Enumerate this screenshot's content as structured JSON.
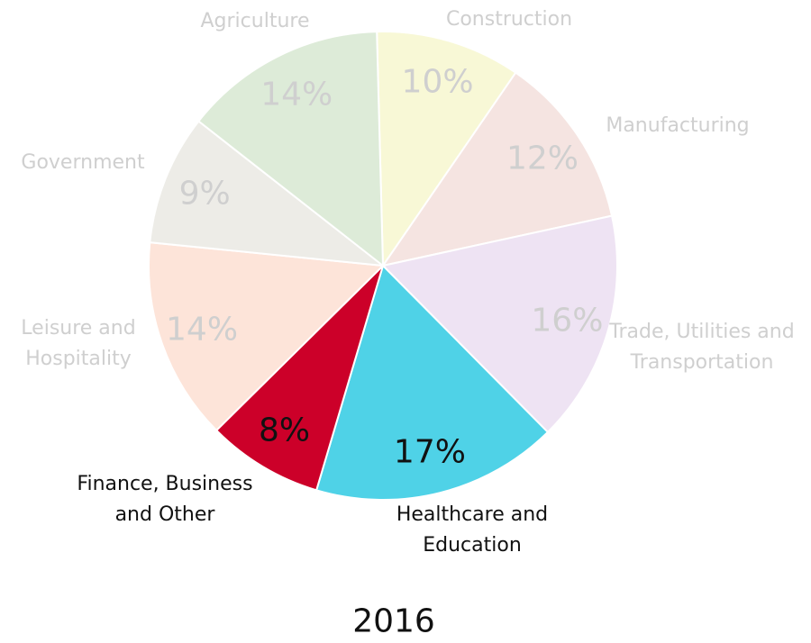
{
  "chart_data": {
    "type": "pie",
    "title": "2016",
    "categories": [
      "Construction",
      "Manufacturing",
      "Trade, Utilities and Transportation",
      "Healthcare and Education",
      "Finance, Business and Other",
      "Leisure and Hospitality",
      "Government",
      "Agriculture"
    ],
    "values": [
      10,
      12,
      16,
      17,
      8,
      14,
      9,
      14
    ],
    "value_labels": [
      "10%",
      "12%",
      "16%",
      "17%",
      "8%",
      "14%",
      "9%",
      "14%"
    ],
    "colors": [
      "#f8f8d6",
      "#f5e4e1",
      "#eee3f3",
      "#4fd2e7",
      "#cc0029",
      "#fde4d9",
      "#edece7",
      "#ddebd8"
    ],
    "label_colors": [
      "#cfcfcf",
      "#cfcfcf",
      "#cfcfcf",
      "#111111",
      "#111111",
      "#cfcfcf",
      "#cfcfcf",
      "#cfcfcf"
    ]
  }
}
